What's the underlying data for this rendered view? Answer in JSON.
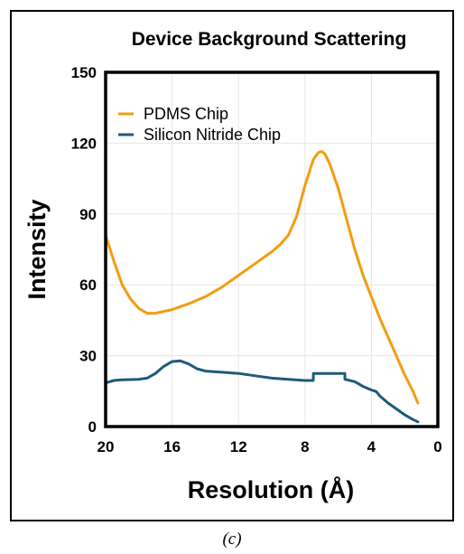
{
  "caption": "(c)",
  "chart_data": {
    "type": "line",
    "title": "Device Background Scattering",
    "xlabel": "Resolution (Å)",
    "ylabel": "Intensity",
    "xlim": [
      20,
      0
    ],
    "ylim": [
      0,
      150
    ],
    "xticks": [
      "20",
      "16",
      "12",
      "8",
      "4",
      "0"
    ],
    "yticks": [
      "0",
      "30",
      "60",
      "90",
      "120",
      "150"
    ],
    "grid": true,
    "legend_position": "top-left",
    "series": [
      {
        "name": "PDMS Chip",
        "color": "#f39c12",
        "x": [
          20,
          19.5,
          19,
          18.5,
          18,
          17.5,
          17,
          16,
          15,
          14,
          13,
          12,
          11,
          10,
          9.5,
          9,
          8.5,
          8,
          7.5,
          7.2,
          7,
          6.8,
          6.5,
          6,
          5.5,
          5,
          4.5,
          4,
          3.5,
          3,
          2.5,
          2,
          1.5,
          1.2
        ],
        "y": [
          81,
          70,
          60,
          54,
          50,
          48,
          48,
          49.5,
          52,
          55,
          59,
          64,
          69,
          74,
          77,
          81,
          89,
          102,
          113,
          116,
          116.5,
          115.5,
          111,
          101,
          88,
          75,
          64,
          55,
          46,
          38,
          30,
          22,
          15,
          10
        ]
      },
      {
        "name": "Silicon Nitride Chip",
        "color": "#1f5a7a",
        "x": [
          20,
          19.5,
          19,
          18,
          17.5,
          17,
          16.5,
          16,
          15.5,
          15,
          14.5,
          14,
          13,
          12,
          11,
          10,
          9,
          8,
          7.5,
          7.49,
          7,
          6.5,
          6,
          5.6,
          5.59,
          5,
          4.5,
          4,
          3.7,
          3.5,
          3,
          2.5,
          2,
          1.5,
          1.2
        ],
        "y": [
          18.5,
          19.5,
          19.8,
          20,
          20.5,
          22.5,
          25.5,
          27.5,
          27.8,
          26.5,
          24.5,
          23.5,
          23,
          22.5,
          21.5,
          20.5,
          20,
          19.5,
          19.5,
          22.5,
          22.5,
          22.5,
          22.5,
          22.5,
          20,
          19,
          17,
          15.5,
          14.8,
          13,
          10,
          7.5,
          5,
          3,
          2
        ]
      }
    ]
  }
}
